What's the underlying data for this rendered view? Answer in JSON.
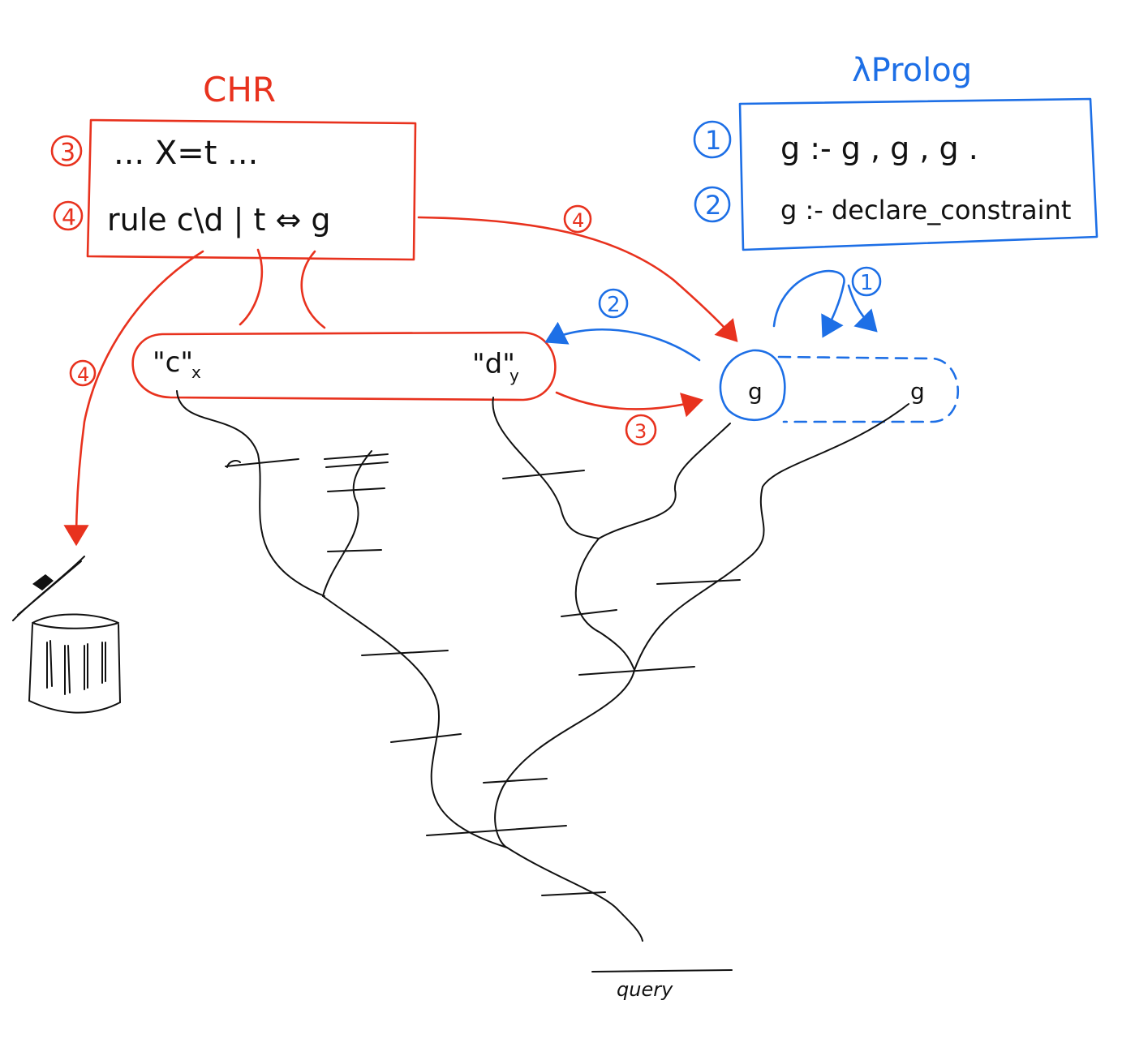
{
  "colors": {
    "chr": "#e8321e",
    "prolog": "#1d6fe6",
    "ink": "#111111"
  },
  "chr": {
    "title": "CHR",
    "step3_badge": "3",
    "step4_badge": "4",
    "line1": "... X=t ...",
    "line2": "rule  c\\d | t ⇔ g"
  },
  "prolog": {
    "title": "λProlog",
    "step1_badge": "1",
    "step2_badge": "2",
    "clause1": "g :- g , g , g .",
    "clause2": "g :- declare_constraint"
  },
  "store": {
    "c_label": "\"c\"",
    "c_sub": "x",
    "d_label": "\"d\"",
    "d_sub": "y"
  },
  "goals": {
    "goal1": "g",
    "goal2": "g"
  },
  "arrows": {
    "chr_to_goal": "4",
    "chr_to_trash": "4",
    "goal_to_store": "2",
    "store_to_goal": "3",
    "goal_expand": "1"
  },
  "icons": {
    "trash": "trash-can-icon"
  },
  "query_label": "query"
}
